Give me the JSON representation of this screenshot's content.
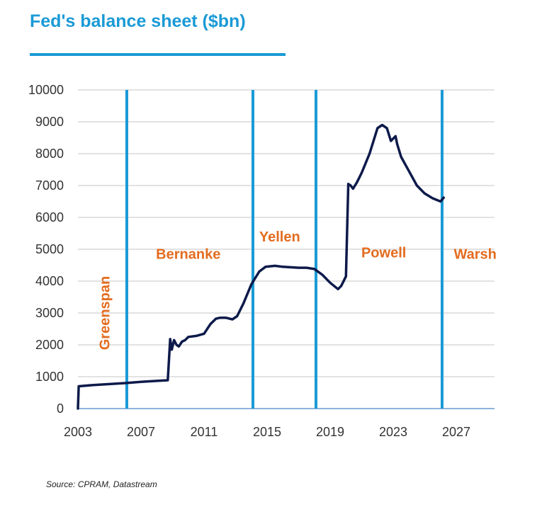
{
  "title": "Fed's balance sheet ($bn)",
  "source": "Source: CPRAM, Datastream",
  "colors": {
    "title": "#1a9ad6",
    "line": "#0d1a4a",
    "vline": "#1a9ad6",
    "era": "#e36c1f",
    "grid": "#d9d9d9"
  },
  "chart_data": {
    "type": "line",
    "title": "Fed's balance sheet ($bn)",
    "xlabel": "",
    "ylabel": "",
    "xlim": [
      2003,
      2030
    ],
    "ylim": [
      0,
      10000
    ],
    "x_ticks": [
      "2003",
      "2007",
      "2011",
      "2015",
      "2019",
      "2023",
      "2027"
    ],
    "y_ticks": [
      "0",
      "1000",
      "2000",
      "3000",
      "4000",
      "5000",
      "6000",
      "7000",
      "8000",
      "9000",
      "10000"
    ],
    "grid": "horizontal",
    "series": [
      {
        "name": "",
        "x": [
          2003.0,
          2003.05,
          2004.0,
          2005.0,
          2006.0,
          2007.0,
          2008.0,
          2008.7,
          2008.85,
          2008.95,
          2009.1,
          2009.25,
          2009.4,
          2009.6,
          2009.8,
          2010.0,
          2010.5,
          2011.0,
          2011.4,
          2011.75,
          2012.0,
          2012.4,
          2012.8,
          2013.1,
          2013.5,
          2014.0,
          2014.5,
          2014.9,
          2015.5,
          2016.0,
          2017.0,
          2017.5,
          2018.0,
          2018.5,
          2019.0,
          2019.5,
          2019.7,
          2020.0,
          2020.15,
          2020.3,
          2020.45,
          2020.7,
          2021.0,
          2021.5,
          2022.0,
          2022.3,
          2022.6,
          2022.85,
          2023.15,
          2023.25,
          2023.5,
          2024.0,
          2024.5,
          2025.0,
          2025.5,
          2026.0,
          2026.2
        ],
        "y": [
          0,
          700,
          740,
          770,
          800,
          840,
          870,
          890,
          2180,
          1850,
          2150,
          2000,
          1950,
          2100,
          2150,
          2250,
          2280,
          2350,
          2650,
          2820,
          2850,
          2850,
          2800,
          2900,
          3300,
          3900,
          4300,
          4450,
          4480,
          4450,
          4420,
          4420,
          4380,
          4200,
          3950,
          3750,
          3850,
          4150,
          7050,
          7000,
          6900,
          7100,
          7400,
          8000,
          8800,
          8900,
          8800,
          8400,
          8550,
          8300,
          7900,
          7450,
          7000,
          6750,
          6600,
          6500,
          6620
        ]
      }
    ],
    "vertical_lines_x": [
      2006.1,
      2014.1,
      2018.1,
      2026.1
    ],
    "era_labels": [
      {
        "text": "Greenspan",
        "x": 2005.0,
        "y": 3000,
        "rotated": true
      },
      {
        "text": "Bernanke",
        "x": 2010.0,
        "y": 4700
      },
      {
        "text": "Yellen",
        "x": 2015.8,
        "y": 5250
      },
      {
        "text": "Powell",
        "x": 2022.4,
        "y": 4750
      },
      {
        "text": "Warsh",
        "x": 2028.2,
        "y": 4700
      }
    ]
  }
}
